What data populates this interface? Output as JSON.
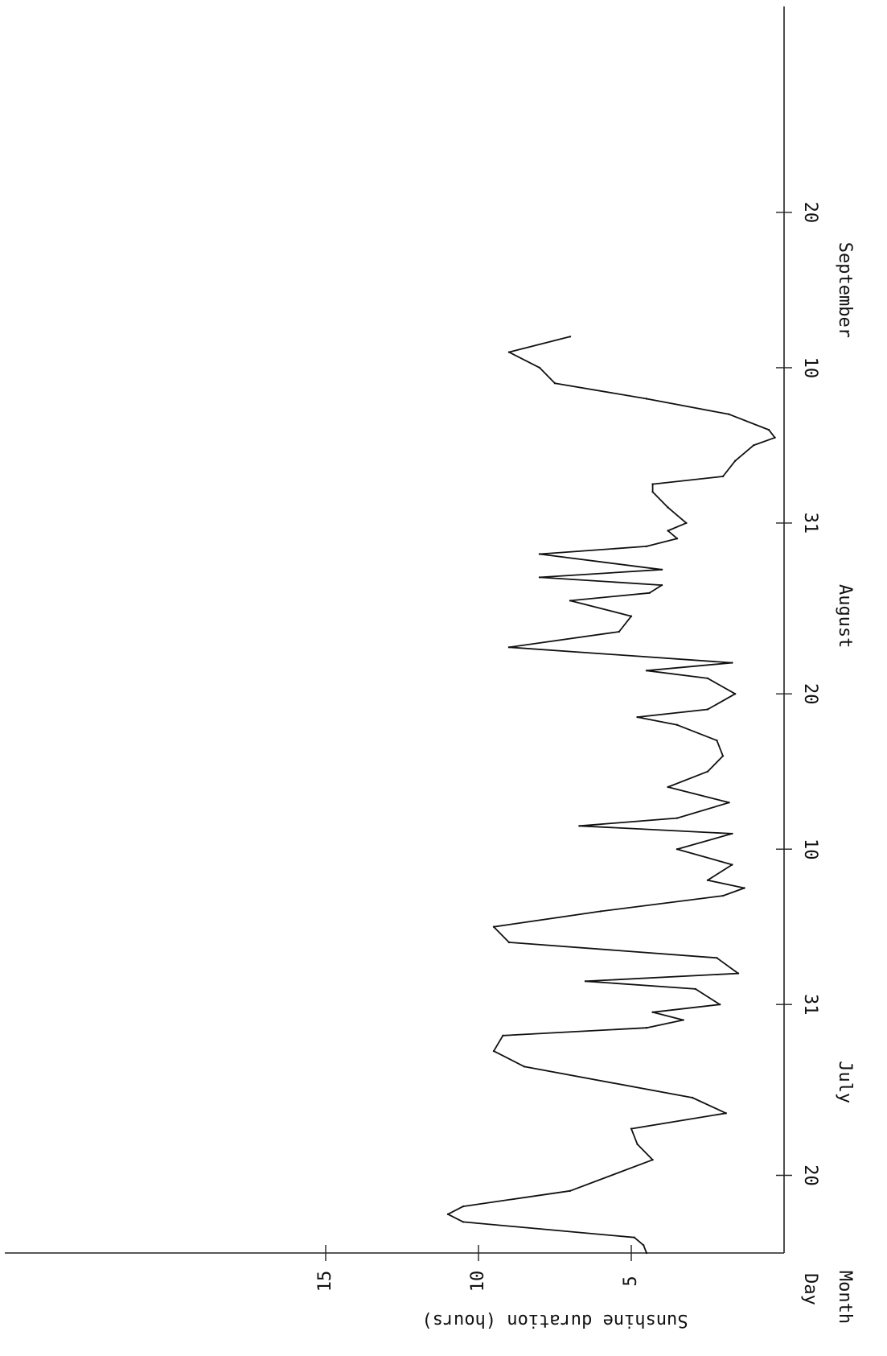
{
  "chart_data": {
    "type": "line",
    "orientation": "rotated-90-clockwise",
    "ylabel": "Sunshine duration (hours)",
    "row_labels": {
      "day": "Day",
      "month": "Month"
    },
    "months": [
      "July",
      "August",
      "September"
    ],
    "y_ticks": [
      "5",
      "10",
      "15"
    ],
    "y_tick_values": [
      5,
      10,
      15
    ],
    "x_ticks": [
      "20",
      "31",
      "10",
      "20",
      "31",
      "10",
      "20"
    ],
    "x_tick_positions": [
      20,
      31,
      41,
      51,
      62,
      72,
      82
    ],
    "month_label_positions": [
      26,
      56,
      77
    ],
    "xlim": [
      15,
      102
    ],
    "ylim": [
      0,
      20
    ],
    "grid": false,
    "series": [
      {
        "x": [
          15,
          15.5,
          16,
          17,
          17.5,
          18,
          19,
          21,
          22,
          23,
          24,
          25,
          27,
          28,
          29,
          29.5,
          30,
          30.5,
          31,
          32,
          32.5,
          33,
          34,
          35,
          36,
          37,
          38,
          38.5,
          39,
          40,
          41,
          42,
          42.5,
          43,
          44,
          45,
          46,
          47,
          48,
          49,
          49.5,
          50,
          51,
          52,
          52.5,
          53,
          54,
          55,
          56,
          57,
          57.5,
          58,
          58.5,
          59,
          60,
          60.5,
          61,
          61.5,
          62,
          63,
          64,
          64.5,
          65,
          66,
          67,
          67.5,
          68,
          69,
          70,
          71,
          72,
          73,
          74
        ],
        "y": [
          4.5,
          4.6,
          4.9,
          10.5,
          11.0,
          10.5,
          7.0,
          4.3,
          4.8,
          5.0,
          1.9,
          3.0,
          8.5,
          9.5,
          9.2,
          4.5,
          3.3,
          4.3,
          2.1,
          2.9,
          6.5,
          1.5,
          2.2,
          9.0,
          9.5,
          6.0,
          2.0,
          1.3,
          2.5,
          1.7,
          3.5,
          1.7,
          6.7,
          3.5,
          1.8,
          3.8,
          2.5,
          2.0,
          2.2,
          3.5,
          4.8,
          2.5,
          1.6,
          2.5,
          4.5,
          1.7,
          9.0,
          5.4,
          5.0,
          7.0,
          4.4,
          4.0,
          8.0,
          4.0,
          8.0,
          4.5,
          3.5,
          3.8,
          3.2,
          3.8,
          4.3,
          4.3,
          2.0,
          1.6,
          1.0,
          0.3,
          0.5,
          1.8,
          4.5,
          7.5,
          8.0,
          9.0,
          7.0
        ]
      }
    ]
  }
}
